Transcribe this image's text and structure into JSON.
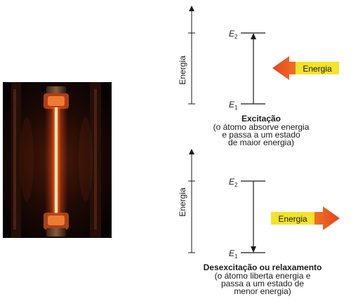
{
  "panels": {
    "excitation": {
      "axis_label": "Energia",
      "level_high": {
        "main": "E",
        "sub": "2"
      },
      "level_low": {
        "main": "E",
        "sub": "1"
      },
      "arrow_badge": "Energia",
      "caption_title": "Excitação",
      "caption_lines": [
        "(o átomo absorve energia",
        "e passa a um estado",
        "de maior energia)"
      ]
    },
    "relaxation": {
      "axis_label": "Energia",
      "level_high": {
        "main": "E",
        "sub": "2"
      },
      "level_low": {
        "main": "E",
        "sub": "1"
      },
      "arrow_badge": "Energia",
      "caption_title": "Desexcitação ou relaxamento",
      "caption_lines": [
        "(o átomo liberta energia e",
        "passa a um estado de",
        "menor energia)"
      ]
    }
  },
  "colors": {
    "arrow_orange": "#e8531c",
    "badge_yellow": "#f3e32a",
    "tube_glow": "#ff5a1a",
    "tube_core": "#ffe28a"
  }
}
